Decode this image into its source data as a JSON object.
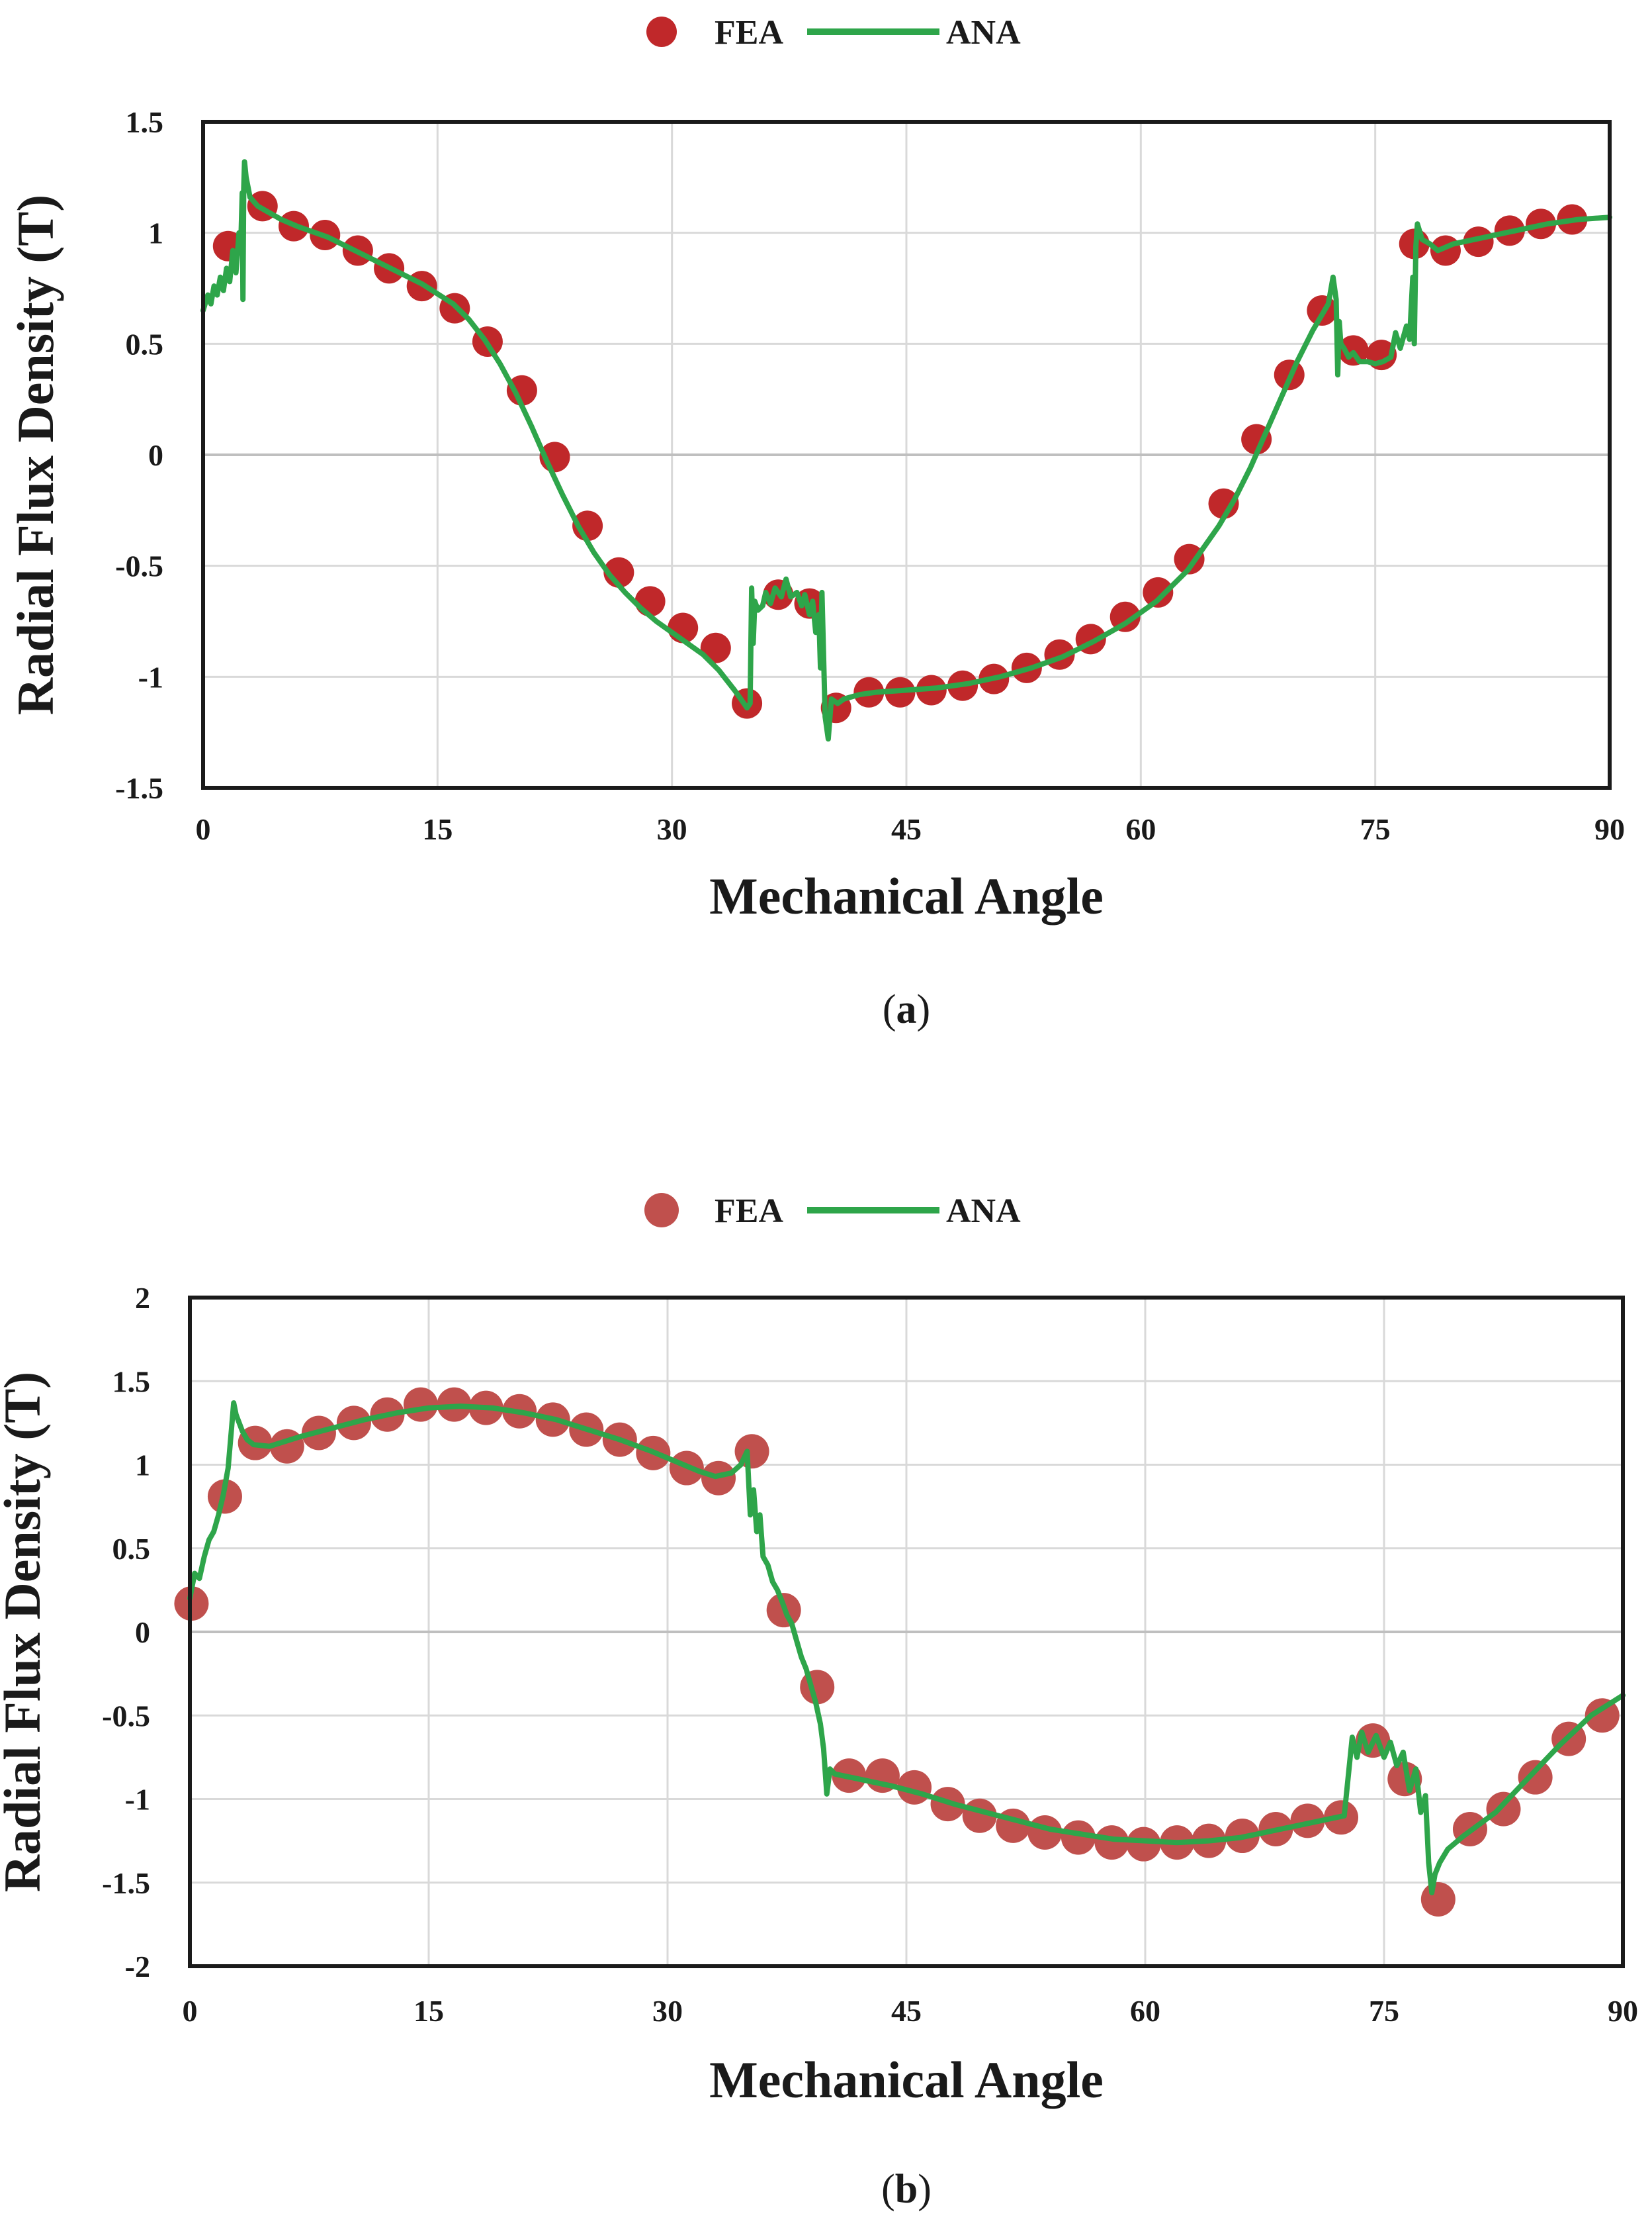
{
  "chart_data": [
    {
      "type": "line",
      "caption": {
        "open": "(",
        "letter": "a",
        "close": ")"
      },
      "xlabel": "Mechanical Angle",
      "ylabel": "Radial Flux Density (T)",
      "xlim": [
        0,
        90
      ],
      "ylim": [
        -1.5,
        1.5
      ],
      "xticks": [
        0,
        15,
        30,
        45,
        60,
        75,
        90
      ],
      "yticks": [
        1.5,
        1,
        0.5,
        0,
        -0.5,
        -1,
        -1.5
      ],
      "xtick_labels": [
        "0",
        "15",
        "30",
        "45",
        "60",
        "75",
        "90"
      ],
      "ytick_labels": [
        "1.5",
        "1",
        "0.5",
        "0",
        "-0.5",
        "-1",
        "-1.5"
      ],
      "grid": true,
      "legend": {
        "position": "top-center",
        "entries": [
          "FEA",
          "ANA"
        ]
      },
      "series": [
        {
          "name": "FEA",
          "kind": "scatter",
          "color": "#c0282a",
          "x": [
            1.6,
            3.8,
            5.8,
            7.8,
            9.9,
            11.9,
            14.0,
            16.1,
            18.2,
            20.4,
            22.5,
            24.6,
            26.6,
            28.6,
            30.7,
            32.8,
            34.8,
            36.8,
            38.8,
            40.5,
            42.6,
            44.6,
            46.6,
            48.6,
            50.6,
            52.7,
            54.8,
            56.8,
            59.0,
            61.1,
            63.1,
            65.3,
            67.4,
            69.5,
            71.6,
            73.6,
            75.4,
            77.5,
            79.5,
            81.6,
            83.6,
            85.6,
            87.6
          ],
          "y": [
            0.94,
            1.12,
            1.03,
            0.99,
            0.92,
            0.84,
            0.76,
            0.66,
            0.51,
            0.29,
            -0.01,
            -0.32,
            -0.53,
            -0.66,
            -0.78,
            -0.87,
            -1.12,
            -0.63,
            -0.67,
            -1.14,
            -1.07,
            -1.07,
            -1.06,
            -1.04,
            -1.01,
            -0.96,
            -0.9,
            -0.83,
            -0.73,
            -0.62,
            -0.47,
            -0.22,
            0.07,
            0.36,
            0.65,
            0.47,
            0.45,
            0.95,
            0.92,
            0.96,
            1.01,
            1.04,
            1.06
          ]
        },
        {
          "name": "ANA",
          "kind": "line",
          "color": "#2ea54a",
          "x": [
            0,
            0.3,
            0.5,
            0.7,
            0.9,
            1.1,
            1.3,
            1.5,
            1.7,
            1.9,
            2.1,
            2.3,
            2.4,
            2.5,
            2.55,
            2.6,
            2.65,
            2.75,
            3.0,
            3.5,
            4.0,
            5.0,
            6.0,
            8.0,
            10.0,
            12.0,
            14.0,
            16.0,
            17.0,
            18.0,
            19.0,
            20.0,
            21.0,
            22.0,
            23.0,
            24.0,
            25.0,
            26.0,
            27.0,
            28.0,
            29.0,
            30.0,
            31.0,
            32.0,
            33.0,
            34.0,
            34.5,
            34.8,
            35.0,
            35.1,
            35.2,
            35.3,
            35.5,
            35.8,
            36.0,
            36.3,
            36.6,
            37.0,
            37.3,
            37.6,
            38.0,
            38.3,
            38.5,
            38.8,
            39.0,
            39.2,
            39.4,
            39.5,
            39.6,
            39.8,
            40.0,
            40.2,
            40.6,
            41.0,
            42.0,
            43.0,
            45.0,
            47.0,
            49.0,
            51.0,
            53.0,
            55.0,
            57.0,
            59.0,
            61.0,
            63.0,
            65.0,
            66.0,
            67.0,
            68.0,
            69.0,
            70.0,
            71.0,
            71.5,
            72.0,
            72.3,
            72.5,
            72.6,
            72.7,
            72.8,
            73.0,
            73.3,
            73.6,
            74.0,
            74.5,
            75.0,
            75.5,
            76.0,
            76.3,
            76.6,
            77.0,
            77.2,
            77.4,
            77.5,
            77.6,
            77.7,
            78.0,
            78.5,
            79.0,
            80.0,
            82.0,
            84.0,
            86.0,
            88.0,
            90.0
          ],
          "y": [
            0.65,
            0.72,
            0.68,
            0.76,
            0.72,
            0.8,
            0.74,
            0.84,
            0.78,
            0.92,
            0.82,
            1.0,
            0.92,
            1.18,
            0.7,
            1.2,
            1.32,
            1.25,
            1.16,
            1.12,
            1.1,
            1.06,
            1.03,
            0.98,
            0.91,
            0.84,
            0.77,
            0.68,
            0.61,
            0.52,
            0.41,
            0.28,
            0.13,
            -0.03,
            -0.18,
            -0.32,
            -0.44,
            -0.54,
            -0.62,
            -0.69,
            -0.75,
            -0.8,
            -0.85,
            -0.9,
            -0.97,
            -1.06,
            -1.11,
            -1.14,
            -1.12,
            -0.6,
            -0.85,
            -0.66,
            -0.7,
            -0.68,
            -0.62,
            -0.67,
            -0.6,
            -0.64,
            -0.56,
            -0.64,
            -0.62,
            -0.68,
            -0.63,
            -0.72,
            -0.66,
            -0.8,
            -0.72,
            -0.96,
            -0.62,
            -1.18,
            -1.28,
            -1.1,
            -1.12,
            -1.1,
            -1.08,
            -1.07,
            -1.06,
            -1.05,
            -1.03,
            -1.0,
            -0.96,
            -0.91,
            -0.84,
            -0.76,
            -0.66,
            -0.52,
            -0.32,
            -0.2,
            -0.06,
            0.1,
            0.26,
            0.42,
            0.56,
            0.62,
            0.68,
            0.8,
            0.7,
            0.36,
            0.6,
            0.5,
            0.48,
            0.44,
            0.46,
            0.42,
            0.42,
            0.41,
            0.42,
            0.44,
            0.55,
            0.48,
            0.58,
            0.52,
            0.8,
            0.5,
            0.94,
            1.04,
            0.97,
            0.95,
            0.92,
            0.95,
            0.98,
            1.01,
            1.04,
            1.06,
            1.07
          ]
        }
      ]
    },
    {
      "type": "line",
      "caption": {
        "open": "(",
        "letter": "b",
        "close": ")"
      },
      "xlabel": "Mechanical Angle",
      "ylabel": "Radial Flux Density (T)",
      "xlim": [
        0,
        90
      ],
      "ylim": [
        -2,
        2
      ],
      "xticks": [
        0,
        15,
        30,
        45,
        60,
        75,
        90
      ],
      "yticks": [
        2,
        1.5,
        1,
        0.5,
        0,
        -0.5,
        -1,
        -1.5,
        -2
      ],
      "xtick_labels": [
        "0",
        "15",
        "30",
        "45",
        "60",
        "75",
        "90"
      ],
      "ytick_labels": [
        "2",
        "1.5",
        "1",
        "0.5",
        "0",
        "-0.5",
        "-1",
        "-1.5",
        "-2"
      ],
      "grid": true,
      "legend": {
        "position": "top-center",
        "entries": [
          "FEA",
          "ANA"
        ]
      },
      "series": [
        {
          "name": "FEA",
          "kind": "scatter",
          "color": "#c0504d",
          "x": [
            0.1,
            2.2,
            4.1,
            6.1,
            8.1,
            10.3,
            12.4,
            14.5,
            16.6,
            18.6,
            20.7,
            22.8,
            24.9,
            27.0,
            29.1,
            31.2,
            33.2,
            35.3,
            37.3,
            39.4,
            41.4,
            43.5,
            45.5,
            47.6,
            49.6,
            51.7,
            53.7,
            55.8,
            57.9,
            59.9,
            62.0,
            64.0,
            66.1,
            68.2,
            70.2,
            72.3,
            74.3,
            76.3,
            78.4,
            80.4,
            82.5,
            84.5,
            86.6,
            88.7
          ],
          "y": [
            0.17,
            0.81,
            1.13,
            1.11,
            1.19,
            1.25,
            1.3,
            1.36,
            1.36,
            1.34,
            1.32,
            1.27,
            1.21,
            1.15,
            1.07,
            0.98,
            0.92,
            1.08,
            0.13,
            -0.33,
            -0.86,
            -0.86,
            -0.93,
            -1.03,
            -1.1,
            -1.16,
            -1.2,
            -1.23,
            -1.26,
            -1.27,
            -1.26,
            -1.25,
            -1.22,
            -1.18,
            -1.13,
            -1.11,
            -0.65,
            -0.88,
            -1.6,
            -1.18,
            -1.06,
            -0.87,
            -0.64,
            -0.5
          ]
        },
        {
          "name": "ANA",
          "kind": "line",
          "color": "#2ea54a",
          "x": [
            0,
            0.3,
            0.6,
            0.9,
            1.2,
            1.5,
            1.8,
            2.1,
            2.4,
            2.6,
            2.75,
            2.9,
            3.1,
            3.3,
            3.6,
            4.0,
            5.0,
            7.0,
            9.0,
            11.0,
            13.0,
            15.0,
            17.0,
            19.0,
            21.0,
            23.0,
            25.0,
            27.0,
            29.0,
            31.0,
            32.0,
            33.0,
            34.0,
            34.6,
            35.0,
            35.2,
            35.4,
            35.6,
            35.8,
            36.0,
            36.3,
            36.6,
            36.9,
            37.2,
            37.5,
            37.8,
            38.1,
            38.4,
            38.7,
            39.0,
            39.3,
            39.6,
            39.8,
            40.0,
            40.2,
            40.5,
            41.0,
            42.0,
            43.0,
            44.0,
            46.0,
            48.0,
            50.0,
            52.0,
            54.0,
            56.0,
            58.0,
            60.0,
            62.0,
            64.0,
            66.0,
            68.0,
            70.0,
            71.5,
            72.5,
            73.0,
            73.3,
            73.6,
            74.0,
            74.5,
            75.0,
            75.4,
            75.8,
            76.2,
            76.6,
            77.0,
            77.3,
            77.6,
            77.8,
            78.0,
            78.2,
            78.5,
            79.0,
            79.5,
            80.0,
            81.0,
            82.0,
            83.0,
            84.0,
            85.0,
            86.0,
            87.0,
            88.0,
            89.0,
            90.0
          ],
          "y": [
            0.2,
            0.35,
            0.32,
            0.45,
            0.55,
            0.6,
            0.7,
            0.82,
            0.98,
            1.2,
            1.37,
            1.3,
            1.25,
            1.2,
            1.15,
            1.12,
            1.11,
            1.17,
            1.22,
            1.27,
            1.31,
            1.34,
            1.35,
            1.34,
            1.31,
            1.27,
            1.21,
            1.15,
            1.08,
            1.0,
            0.96,
            0.93,
            0.95,
            1.0,
            1.08,
            0.7,
            0.85,
            0.6,
            0.7,
            0.45,
            0.4,
            0.3,
            0.25,
            0.18,
            0.1,
            0.05,
            -0.05,
            -0.15,
            -0.22,
            -0.32,
            -0.42,
            -0.55,
            -0.7,
            -0.97,
            -0.82,
            -0.85,
            -0.86,
            -0.88,
            -0.9,
            -0.92,
            -0.97,
            -1.03,
            -1.08,
            -1.13,
            -1.18,
            -1.21,
            -1.24,
            -1.25,
            -1.26,
            -1.25,
            -1.23,
            -1.19,
            -1.15,
            -1.12,
            -1.1,
            -0.63,
            -0.75,
            -0.6,
            -0.72,
            -0.62,
            -0.75,
            -0.66,
            -0.8,
            -0.72,
            -0.95,
            -0.82,
            -1.08,
            -0.98,
            -1.38,
            -1.56,
            -1.45,
            -1.38,
            -1.3,
            -1.26,
            -1.22,
            -1.15,
            -1.08,
            -0.98,
            -0.88,
            -0.78,
            -0.68,
            -0.59,
            -0.5,
            -0.44,
            -0.38
          ]
        }
      ]
    }
  ]
}
